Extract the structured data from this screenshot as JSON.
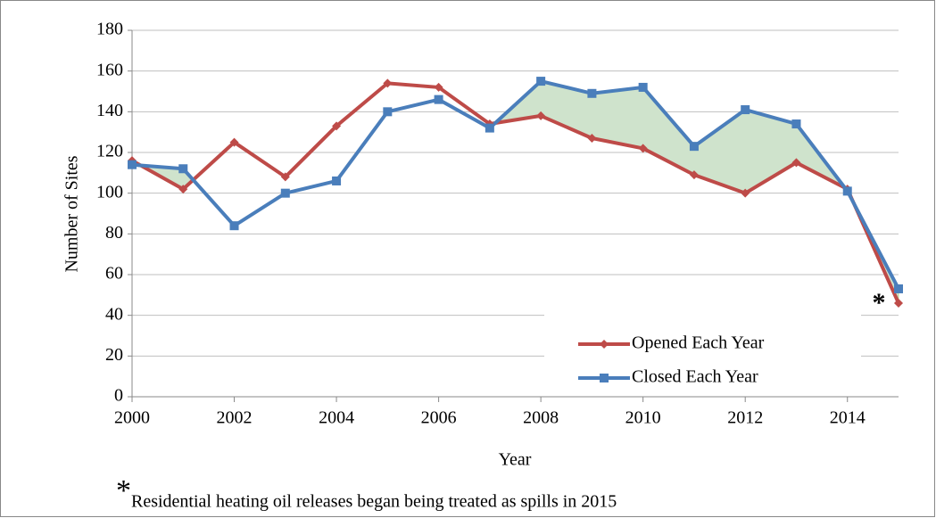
{
  "chart_data": {
    "type": "line",
    "x": [
      2000,
      2001,
      2002,
      2003,
      2004,
      2005,
      2006,
      2007,
      2008,
      2009,
      2010,
      2011,
      2012,
      2013,
      2014,
      2015
    ],
    "series": [
      {
        "name": "Opened Each Year",
        "color": "#be4b48",
        "marker": "diamond",
        "values": [
          116,
          102,
          125,
          108,
          133,
          154,
          152,
          134,
          138,
          127,
          122,
          109,
          100,
          115,
          102,
          46
        ]
      },
      {
        "name": "Closed Each Year",
        "color": "#4a7ebb",
        "marker": "square",
        "values": [
          114,
          112,
          84,
          100,
          106,
          140,
          146,
          132,
          155,
          149,
          152,
          123,
          141,
          134,
          101,
          53
        ]
      }
    ],
    "fill_between_color": "#cfe3cc",
    "xlabel": "Year",
    "ylabel": "Number of Sites",
    "xlim": [
      2000,
      2015
    ],
    "xticks": [
      2000,
      2002,
      2004,
      2006,
      2008,
      2010,
      2012,
      2014
    ],
    "ylim": [
      0,
      180
    ],
    "yticks": [
      0,
      20,
      40,
      60,
      80,
      100,
      120,
      140,
      160,
      180
    ],
    "grid": true,
    "legend": "lower right",
    "annotation": "*",
    "footnote_marker": "*",
    "footnote": "Residential heating oil releases began being treated as spills in 2015"
  }
}
